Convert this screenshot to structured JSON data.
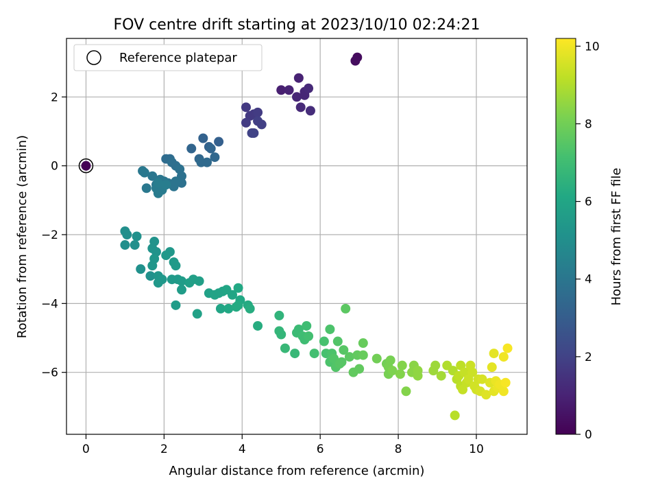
{
  "chart_data": {
    "type": "scatter",
    "title": "FOV centre drift starting at 2023/10/10 02:24:21",
    "xlabel": "Angular distance from reference (arcmin)",
    "ylabel": "Rotation from reference (arcmin)",
    "xlim": [
      -0.5,
      11.3
    ],
    "ylim": [
      -7.8,
      3.7
    ],
    "xticks": [
      0,
      2,
      4,
      6,
      8,
      10
    ],
    "yticks": [
      -6,
      -4,
      -2,
      0,
      2
    ],
    "xtick_labels": [
      "0",
      "2",
      "4",
      "6",
      "8",
      "10"
    ],
    "ytick_labels": [
      "−6",
      "−4",
      "−2",
      "0",
      "2"
    ],
    "grid": true,
    "legend": {
      "position": "top-left",
      "entries": [
        "Reference platepar"
      ]
    },
    "colorbar": {
      "label": "Hours from first FF file",
      "range": [
        0,
        10.2
      ],
      "ticks": [
        0,
        2,
        4,
        6,
        8,
        10
      ],
      "tick_labels": [
        "0",
        "2",
        "4",
        "6",
        "8",
        "10"
      ],
      "colormap": "viridis"
    },
    "reference_point": {
      "x": 0,
      "y": 0
    },
    "series": [
      {
        "points": [
          [
            0,
            0,
            0
          ],
          [
            6.95,
            3.15,
            0.3
          ],
          [
            6.9,
            3.05,
            0.35
          ],
          [
            5.0,
            2.2,
            0.9
          ],
          [
            5.2,
            2.2,
            1.0
          ],
          [
            5.45,
            2.55,
            1.0
          ],
          [
            5.4,
            2.0,
            1.1
          ],
          [
            5.6,
            2.05,
            1.1
          ],
          [
            5.6,
            2.15,
            1.1
          ],
          [
            5.7,
            2.25,
            1.2
          ],
          [
            5.5,
            1.7,
            1.2
          ],
          [
            5.75,
            1.6,
            1.3
          ],
          [
            4.1,
            1.7,
            1.7
          ],
          [
            4.2,
            1.45,
            1.7
          ],
          [
            4.3,
            1.5,
            1.7
          ],
          [
            4.4,
            1.55,
            1.8
          ],
          [
            4.1,
            1.25,
            1.8
          ],
          [
            4.4,
            1.3,
            1.9
          ],
          [
            4.5,
            1.2,
            1.9
          ],
          [
            4.25,
            0.95,
            2.0
          ],
          [
            4.3,
            0.95,
            2.0
          ],
          [
            3.4,
            0.7,
            3.1
          ],
          [
            3.0,
            0.8,
            3.2
          ],
          [
            3.15,
            0.55,
            3.2
          ],
          [
            3.2,
            0.5,
            3.3
          ],
          [
            2.7,
            0.5,
            3.3
          ],
          [
            3.3,
            0.25,
            3.4
          ],
          [
            2.9,
            0.2,
            3.4
          ],
          [
            2.95,
            0.1,
            3.5
          ],
          [
            3.1,
            0.1,
            3.5
          ],
          [
            2.05,
            0.2,
            3.6
          ],
          [
            2.15,
            0.2,
            3.6
          ],
          [
            2.2,
            0.1,
            3.7
          ],
          [
            2.3,
            0.0,
            3.7
          ],
          [
            2.4,
            -0.1,
            3.8
          ],
          [
            2.45,
            -0.3,
            3.8
          ],
          [
            2.45,
            -0.5,
            3.8
          ],
          [
            2.3,
            -0.45,
            3.9
          ],
          [
            2.25,
            -0.6,
            3.9
          ],
          [
            2.1,
            -0.5,
            3.9
          ],
          [
            2.0,
            -0.45,
            4.0
          ],
          [
            1.9,
            -0.4,
            4.0
          ],
          [
            1.8,
            -0.55,
            4.0
          ],
          [
            1.7,
            -0.3,
            4.0
          ],
          [
            1.5,
            -0.2,
            4.1
          ],
          [
            1.45,
            -0.15,
            4.1
          ],
          [
            1.55,
            -0.65,
            4.1
          ],
          [
            1.8,
            -0.65,
            4.2
          ],
          [
            1.85,
            -0.8,
            4.2
          ],
          [
            1.95,
            -0.7,
            4.2
          ],
          [
            2.05,
            -0.55,
            4.3
          ],
          [
            1.85,
            -0.5,
            4.3
          ],
          [
            1.0,
            -1.9,
            5.0
          ],
          [
            1.05,
            -2.0,
            5.0
          ],
          [
            1.0,
            -2.3,
            5.0
          ],
          [
            1.25,
            -2.3,
            5.0
          ],
          [
            1.3,
            -2.05,
            5.1
          ],
          [
            1.4,
            -3.0,
            5.1
          ],
          [
            1.65,
            -3.2,
            5.1
          ],
          [
            1.75,
            -2.2,
            5.2
          ],
          [
            1.7,
            -2.4,
            5.2
          ],
          [
            1.8,
            -2.5,
            5.2
          ],
          [
            1.75,
            -2.7,
            5.3
          ],
          [
            1.7,
            -2.9,
            5.3
          ],
          [
            1.85,
            -3.2,
            5.3
          ],
          [
            1.95,
            -3.3,
            5.4
          ],
          [
            1.85,
            -3.4,
            5.4
          ],
          [
            2.05,
            -2.6,
            5.4
          ],
          [
            2.15,
            -2.5,
            5.4
          ],
          [
            2.25,
            -2.8,
            5.5
          ],
          [
            2.3,
            -2.9,
            5.5
          ],
          [
            2.2,
            -3.3,
            5.5
          ],
          [
            2.35,
            -3.3,
            5.5
          ],
          [
            2.45,
            -3.35,
            5.6
          ],
          [
            2.3,
            -4.05,
            5.6
          ],
          [
            2.45,
            -3.6,
            5.6
          ],
          [
            2.65,
            -3.4,
            5.7
          ],
          [
            2.75,
            -3.3,
            5.7
          ],
          [
            2.9,
            -3.35,
            5.7
          ],
          [
            2.85,
            -4.3,
            5.8
          ],
          [
            3.15,
            -3.7,
            5.8
          ],
          [
            3.3,
            -3.75,
            5.9
          ],
          [
            3.4,
            -3.7,
            5.9
          ],
          [
            3.5,
            -3.65,
            5.9
          ],
          [
            3.6,
            -3.6,
            6.0
          ],
          [
            3.75,
            -3.75,
            6.0
          ],
          [
            3.45,
            -4.15,
            6.0
          ],
          [
            3.65,
            -4.15,
            6.1
          ],
          [
            3.9,
            -3.55,
            6.1
          ],
          [
            3.95,
            -3.9,
            6.1
          ],
          [
            3.9,
            -4.05,
            6.2
          ],
          [
            3.85,
            -4.1,
            6.2
          ],
          [
            4.15,
            -4.05,
            6.2
          ],
          [
            4.2,
            -4.15,
            6.3
          ],
          [
            4.4,
            -4.65,
            6.3
          ],
          [
            4.95,
            -4.35,
            6.6
          ],
          [
            4.95,
            -4.8,
            6.7
          ],
          [
            5.0,
            -4.9,
            6.7
          ],
          [
            5.1,
            -5.3,
            6.8
          ],
          [
            5.35,
            -5.45,
            6.8
          ],
          [
            5.4,
            -4.85,
            6.9
          ],
          [
            5.45,
            -4.75,
            6.9
          ],
          [
            5.55,
            -4.95,
            7.0
          ],
          [
            5.6,
            -5.05,
            7.0
          ],
          [
            5.65,
            -4.65,
            7.0
          ],
          [
            5.7,
            -4.95,
            7.1
          ],
          [
            5.85,
            -5.45,
            7.1
          ],
          [
            6.1,
            -5.1,
            7.2
          ],
          [
            6.15,
            -5.45,
            7.2
          ],
          [
            6.25,
            -5.7,
            7.3
          ],
          [
            6.25,
            -4.75,
            7.3
          ],
          [
            6.3,
            -5.45,
            7.3
          ],
          [
            6.35,
            -5.6,
            7.4
          ],
          [
            6.4,
            -5.85,
            7.4
          ],
          [
            6.45,
            -5.1,
            7.4
          ],
          [
            6.5,
            -5.75,
            7.5
          ],
          [
            6.55,
            -5.7,
            7.5
          ],
          [
            6.6,
            -5.35,
            7.5
          ],
          [
            6.65,
            -4.15,
            7.6
          ],
          [
            6.75,
            -5.55,
            7.6
          ],
          [
            6.85,
            -6.0,
            7.7
          ],
          [
            6.95,
            -5.5,
            7.7
          ],
          [
            7.0,
            -5.9,
            7.7
          ],
          [
            7.1,
            -5.5,
            7.8
          ],
          [
            7.1,
            -5.15,
            7.8
          ],
          [
            7.45,
            -5.6,
            8.0
          ],
          [
            7.7,
            -5.75,
            8.0
          ],
          [
            7.75,
            -5.85,
            8.1
          ],
          [
            7.75,
            -6.05,
            8.1
          ],
          [
            7.8,
            -5.65,
            8.1
          ],
          [
            7.85,
            -5.95,
            8.2
          ],
          [
            8.05,
            -6.05,
            8.3
          ],
          [
            8.1,
            -5.8,
            8.3
          ],
          [
            8.2,
            -6.55,
            8.3
          ],
          [
            8.35,
            -6.0,
            8.4
          ],
          [
            8.4,
            -5.8,
            8.4
          ],
          [
            8.5,
            -5.95,
            8.5
          ],
          [
            8.5,
            -6.1,
            8.5
          ],
          [
            8.9,
            -5.95,
            8.7
          ],
          [
            8.95,
            -5.8,
            8.7
          ],
          [
            9.1,
            -6.1,
            8.8
          ],
          [
            9.25,
            -5.8,
            9.0
          ],
          [
            9.4,
            -5.95,
            9.0
          ],
          [
            9.45,
            -7.25,
            9.1
          ],
          [
            9.5,
            -6.2,
            9.1
          ],
          [
            9.55,
            -6.1,
            9.2
          ],
          [
            9.6,
            -5.8,
            9.2
          ],
          [
            9.6,
            -6.4,
            9.2
          ],
          [
            9.65,
            -6.5,
            9.3
          ],
          [
            9.7,
            -6.0,
            9.3
          ],
          [
            9.75,
            -6.3,
            9.3
          ],
          [
            9.8,
            -6.2,
            9.4
          ],
          [
            9.85,
            -5.8,
            9.4
          ],
          [
            9.9,
            -6.0,
            9.4
          ],
          [
            9.95,
            -6.4,
            9.5
          ],
          [
            10.0,
            -6.5,
            9.5
          ],
          [
            10.05,
            -6.2,
            9.5
          ],
          [
            10.1,
            -6.55,
            9.6
          ],
          [
            10.15,
            -6.2,
            9.6
          ],
          [
            10.25,
            -6.65,
            9.7
          ],
          [
            10.35,
            -6.3,
            9.7
          ],
          [
            10.4,
            -5.85,
            9.8
          ],
          [
            10.45,
            -5.45,
            9.8
          ],
          [
            10.45,
            -6.55,
            9.8
          ],
          [
            10.5,
            -6.25,
            9.9
          ],
          [
            10.55,
            -6.45,
            9.9
          ],
          [
            10.6,
            -6.35,
            10.0
          ],
          [
            10.7,
            -6.55,
            10.0
          ],
          [
            10.7,
            -5.55,
            10.0
          ],
          [
            10.75,
            -6.3,
            10.1
          ],
          [
            10.8,
            -5.3,
            10.1
          ]
        ]
      }
    ]
  }
}
